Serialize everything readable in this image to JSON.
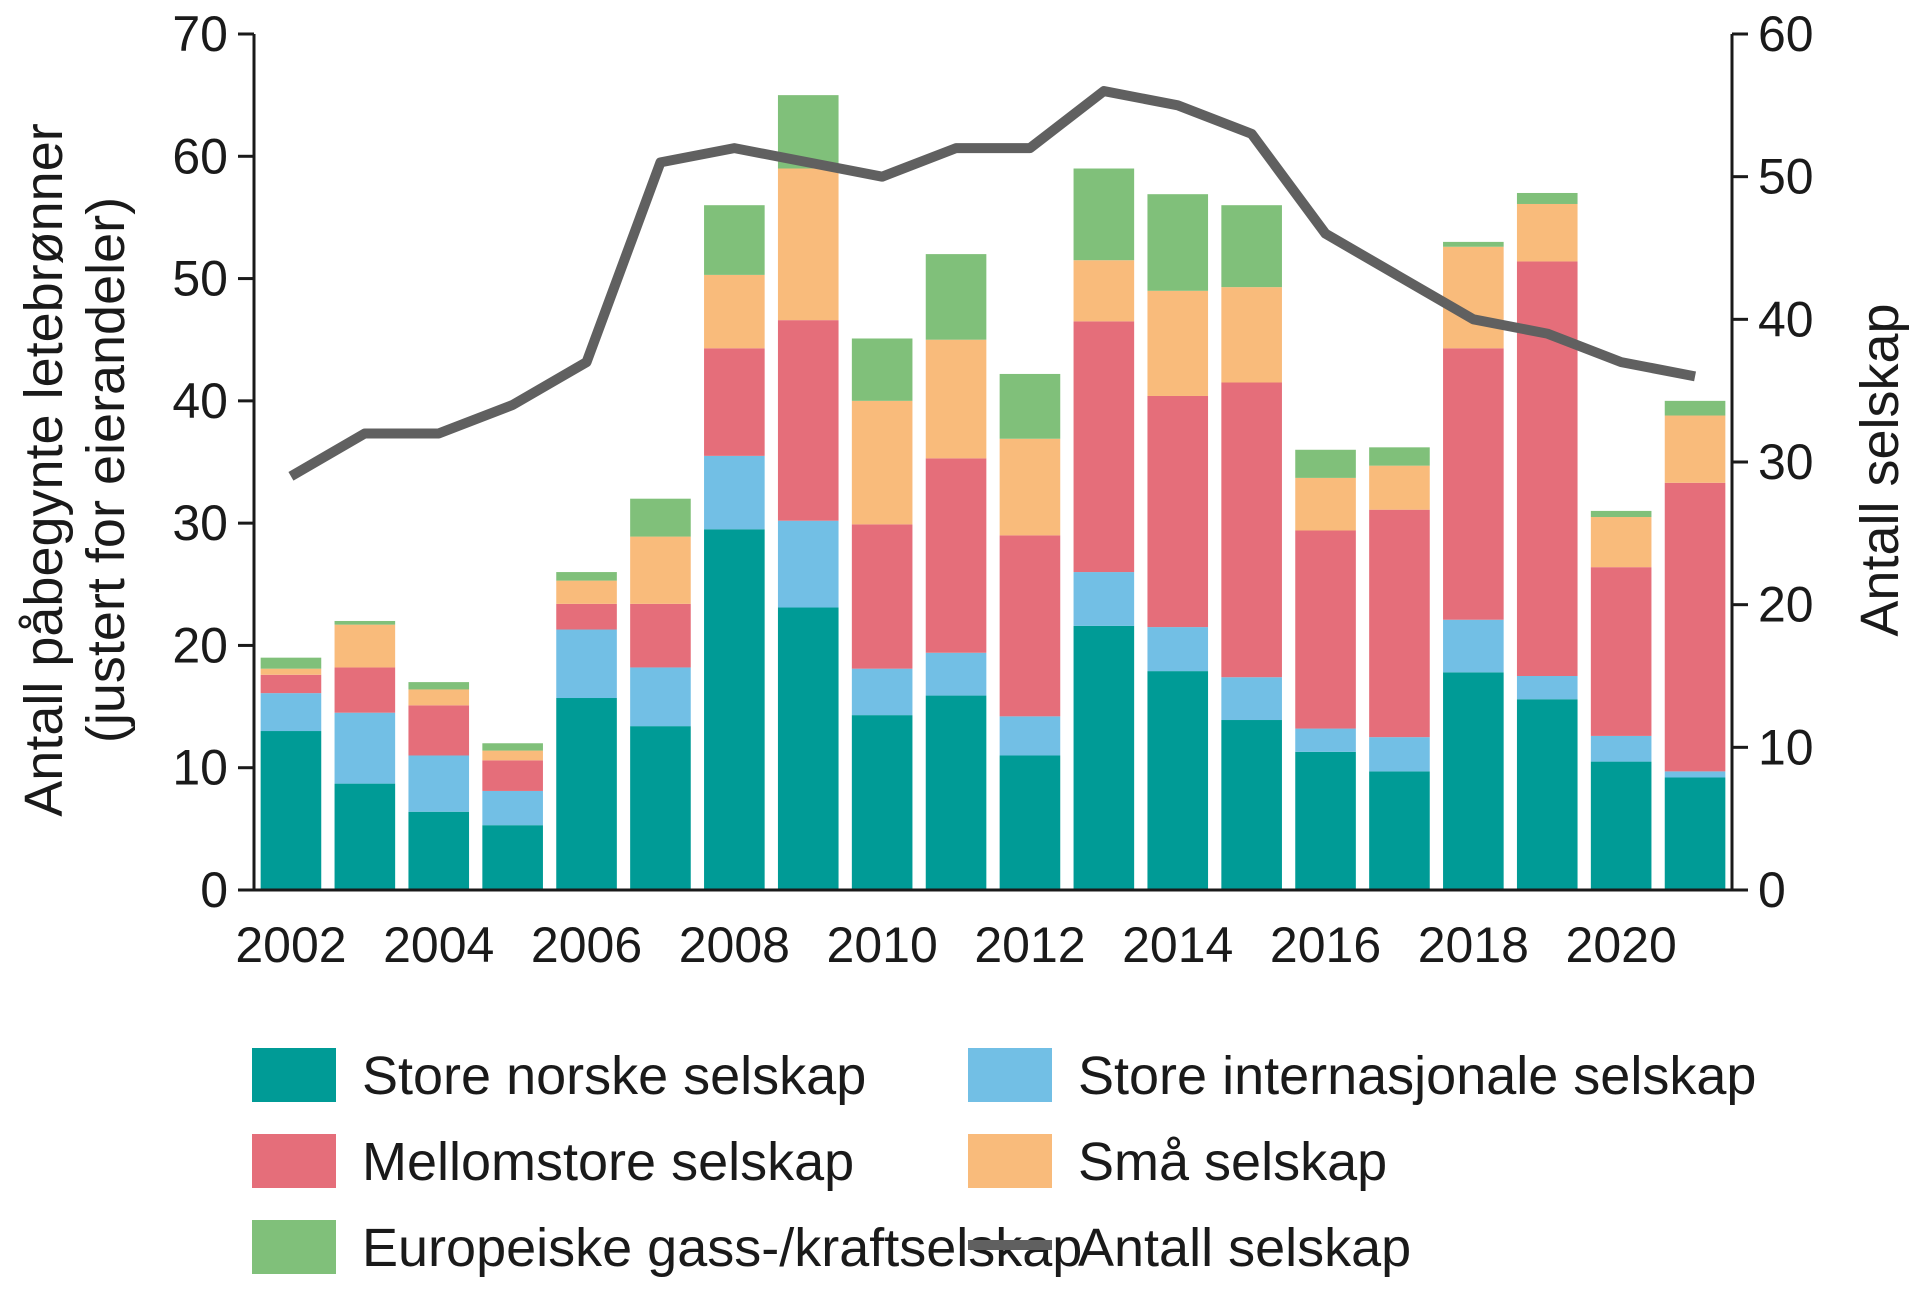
{
  "chart_data": {
    "type": "bar",
    "stacked": true,
    "categories": [
      "2002",
      "2003",
      "2004",
      "2005",
      "2006",
      "2007",
      "2008",
      "2009",
      "2010",
      "2011",
      "2012",
      "2013",
      "2014",
      "2015",
      "2016",
      "2017",
      "2018",
      "2019",
      "2020",
      "2021"
    ],
    "x_tick_labels": [
      "2002",
      "2004",
      "2006",
      "2008",
      "2010",
      "2012",
      "2014",
      "2016",
      "2018",
      "2020"
    ],
    "ylabel_line1": "Antall påbegynte letebrønner",
    "ylabel_line2": "(justert for eierandeler)",
    "ylim": [
      0,
      70
    ],
    "y_ticks": [
      0,
      10,
      20,
      30,
      40,
      50,
      60,
      70
    ],
    "y2label": "Antall selskap",
    "y2lim": [
      0,
      60
    ],
    "y2_ticks": [
      0,
      10,
      20,
      30,
      40,
      50,
      60
    ],
    "grid": false,
    "legend_position": "bottom",
    "series": [
      {
        "name": "Store norske selskap",
        "color": "#009b96",
        "values": [
          13,
          8.7,
          6.4,
          5.3,
          15.7,
          13.4,
          29.5,
          23.1,
          14.3,
          15.9,
          11,
          21.6,
          17.9,
          13.9,
          11.3,
          9.7,
          17.8,
          15.6,
          10.5,
          9.2
        ]
      },
      {
        "name": "Store internasjonale selskap",
        "color": "#72bfe5",
        "values": [
          3.1,
          5.8,
          4.6,
          2.8,
          5.6,
          4.8,
          6,
          7.1,
          3.8,
          3.5,
          3.2,
          4.4,
          3.6,
          3.5,
          1.9,
          2.8,
          4.3,
          1.9,
          2.1,
          0.5
        ]
      },
      {
        "name": "Mellomstore selskap",
        "color": "#e56e7a",
        "values": [
          1.5,
          3.7,
          4.1,
          2.5,
          2.1,
          5.2,
          8.8,
          16.4,
          11.8,
          15.9,
          14.8,
          20.5,
          18.9,
          24.1,
          16.2,
          18.6,
          22.2,
          33.9,
          13.8,
          23.6
        ]
      },
      {
        "name": "Små selskap",
        "color": "#f9bb7b",
        "values": [
          0.5,
          3.5,
          1.3,
          0.8,
          1.9,
          5.5,
          6,
          12.4,
          10.1,
          9.7,
          7.9,
          5,
          8.6,
          7.8,
          4.3,
          3.6,
          8.3,
          4.7,
          4.1,
          5.5
        ]
      },
      {
        "name": "Europeiske gass-/kraftselskap",
        "color": "#80c07a",
        "values": [
          0.9,
          0.3,
          0.6,
          0.6,
          0.7,
          3.1,
          5.7,
          6,
          5.1,
          7,
          5.3,
          7.5,
          7.9,
          6.7,
          2.3,
          1.5,
          0.4,
          0.9,
          0.5,
          1.2
        ]
      }
    ],
    "line_series": {
      "name": "Antall selskap",
      "color": "#606060",
      "axis": "right",
      "values": [
        29,
        32,
        32,
        34,
        37,
        51,
        52,
        51,
        50,
        52,
        52,
        56,
        55,
        53,
        46,
        43,
        40,
        39,
        37,
        36
      ]
    }
  }
}
